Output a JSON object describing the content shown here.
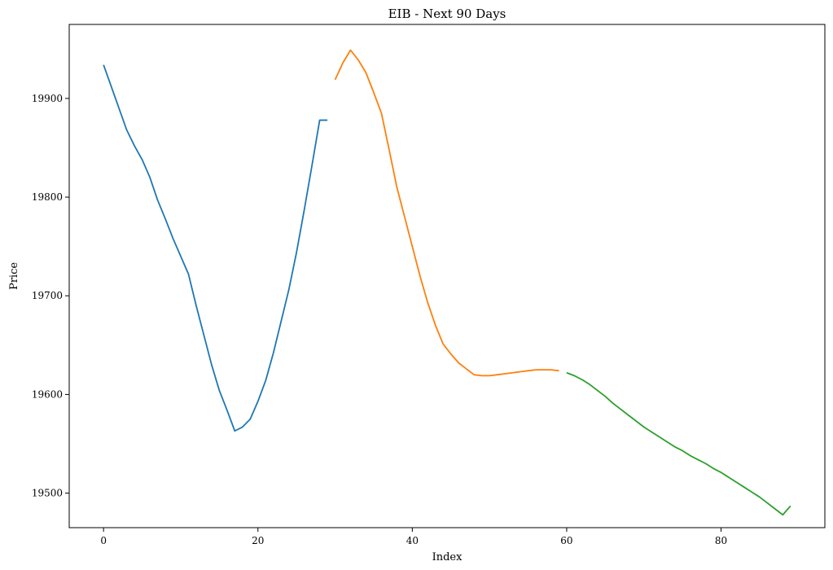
{
  "chart_data": {
    "type": "line",
    "title": "EIB - Next 90 Days",
    "xlabel": "Index",
    "ylabel": "Price",
    "xlim": [
      -4.45,
      93.45
    ],
    "ylim": [
      19465,
      19975
    ],
    "xticks": [
      0,
      20,
      40,
      60,
      80
    ],
    "yticks": [
      19500,
      19600,
      19700,
      19800,
      19900
    ],
    "grid": false,
    "series": [
      {
        "color": "#1f77b4",
        "x": [
          0,
          1,
          2,
          3,
          4,
          5,
          6,
          7,
          8,
          9,
          10,
          11,
          12,
          13,
          14,
          15,
          16,
          17,
          18,
          19,
          20,
          21,
          22,
          23,
          24,
          25,
          26,
          27,
          28,
          29
        ],
        "y": [
          19934,
          19912,
          19890,
          19868,
          19852,
          19838,
          19820,
          19797,
          19778,
          19758,
          19740,
          19722,
          19690,
          19660,
          19630,
          19604,
          19584,
          19563,
          19567,
          19575,
          19593,
          19614,
          19642,
          19674,
          19706,
          19744,
          19787,
          19832,
          19878,
          19878
        ]
      },
      {
        "color": "#ff7f0e",
        "x": [
          30,
          31,
          32,
          33,
          34,
          35,
          36,
          37,
          38,
          39,
          40,
          41,
          42,
          43,
          44,
          45,
          46,
          47,
          48,
          49,
          50,
          51,
          52,
          53,
          54,
          55,
          56,
          57,
          58,
          59
        ],
        "y": [
          19919,
          19936,
          19949,
          19939,
          19926,
          19906,
          19885,
          19848,
          19810,
          19780,
          19750,
          19720,
          19693,
          19670,
          19651,
          19641,
          19632,
          19626,
          19620,
          19619,
          19619,
          19620,
          19621,
          19622,
          19623,
          19624,
          19625,
          19625,
          19625,
          19624
        ]
      },
      {
        "color": "#2ca02c",
        "x": [
          60,
          61,
          62,
          63,
          64,
          65,
          66,
          67,
          68,
          69,
          70,
          71,
          72,
          73,
          74,
          75,
          76,
          77,
          78,
          79,
          80,
          81,
          82,
          83,
          84,
          85,
          86,
          87,
          88,
          89
        ],
        "y": [
          19622,
          19619,
          19615,
          19610,
          19604,
          19598,
          19591,
          19585,
          19579,
          19573,
          19567,
          19562,
          19557,
          19552,
          19547,
          19543,
          19538,
          19534,
          19530,
          19525,
          19521,
          19516,
          19511,
          19506,
          19501,
          19496,
          19490,
          19484,
          19478,
          19487
        ]
      }
    ]
  }
}
